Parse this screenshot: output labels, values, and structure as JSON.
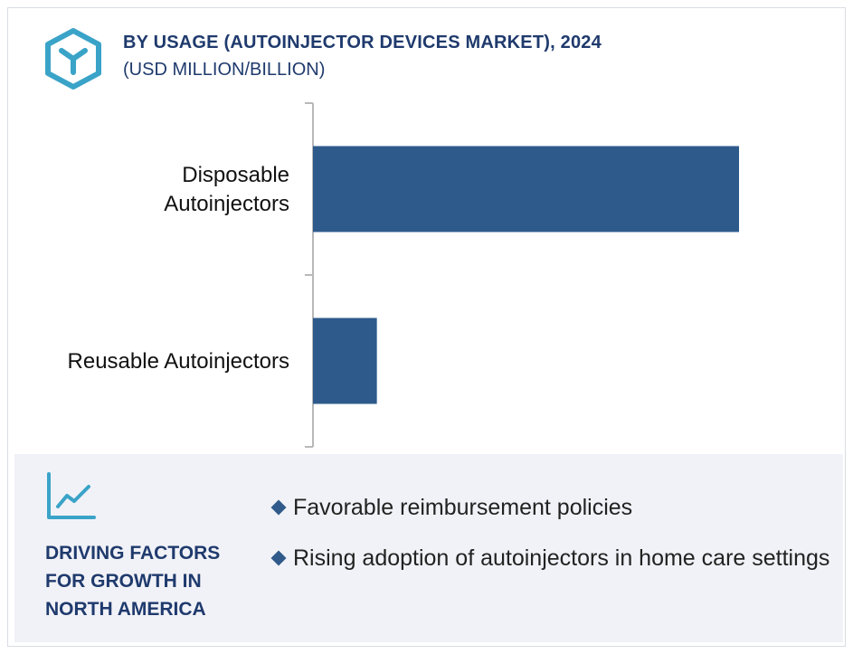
{
  "header": {
    "logo_icon": "hexagon-y-logo-icon",
    "title": "BY USAGE (AUTOINJECTOR DEVICES MARKET), 2024",
    "subtitle": "(USD MILLION/BILLION)"
  },
  "chart_data": {
    "type": "bar",
    "orientation": "horizontal",
    "categories": [
      [
        "Disposable",
        "Autoinjectors"
      ],
      [
        "Reusable Autoinjectors"
      ]
    ],
    "values": [
      100,
      15
    ],
    "xlim": [
      0,
      100
    ],
    "grid": false,
    "legend": "none",
    "bar_color": "#2d5a8b"
  },
  "panel": {
    "trend_icon": "trend-chart-icon",
    "title_lines": [
      "DRIVING FACTORS",
      "FOR GROWTH IN",
      "NORTH AMERICA"
    ],
    "factors": [
      "Favorable reimbursement policies",
      "Rising adoption of autoinjectors in home care settings"
    ],
    "bullet_icon": "diamond-bullet-icon",
    "accent_color": "#2f5a8a"
  }
}
